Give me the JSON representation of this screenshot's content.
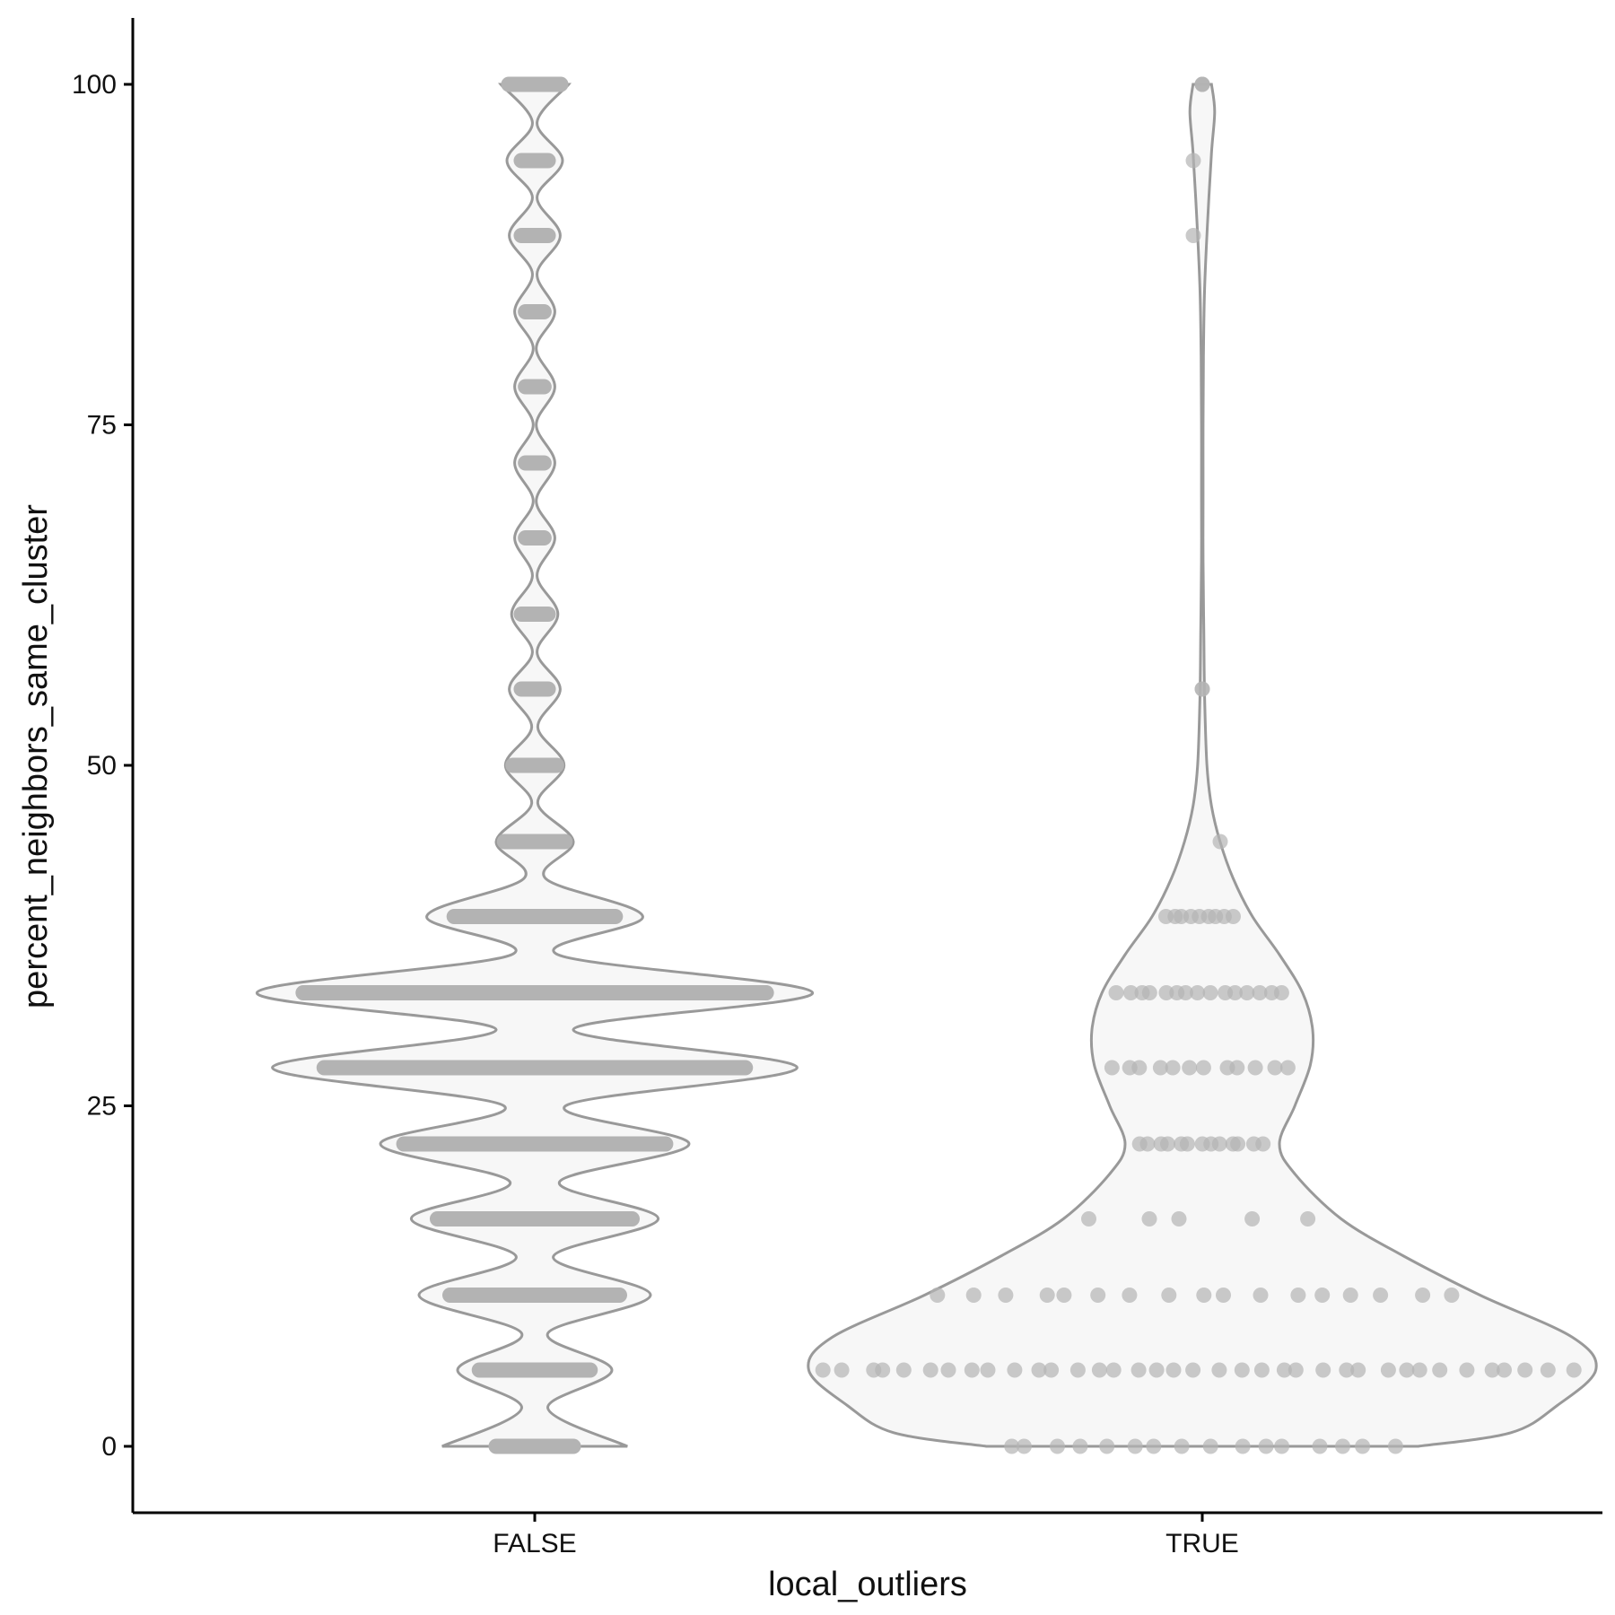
{
  "chart_data": {
    "type": "violin",
    "title": "",
    "xlabel": "local_outliers",
    "ylabel": "percent_neighbors_same_cluster",
    "categories": [
      "FALSE",
      "TRUE"
    ],
    "ylim": [
      -5,
      105
    ],
    "yticks": [
      0,
      25,
      50,
      75,
      100
    ],
    "grid": false,
    "colors": {
      "violin_fill": "#f7f7f7",
      "violin_stroke": "#999999",
      "point": "#b3b3b3",
      "axis": "#000000"
    },
    "groups": [
      {
        "name": "FALSE",
        "levels": [
          {
            "y": 0,
            "count": 10
          },
          {
            "y": 5.6,
            "count": 14
          },
          {
            "y": 11.1,
            "count": 21
          },
          {
            "y": 16.7,
            "count": 24
          },
          {
            "y": 22.2,
            "count": 32
          },
          {
            "y": 27.8,
            "count": 51
          },
          {
            "y": 33.3,
            "count": 56
          },
          {
            "y": 38.9,
            "count": 20
          },
          {
            "y": 44.4,
            "count": 8
          },
          {
            "y": 50,
            "count": 6
          },
          {
            "y": 55.6,
            "count": 4
          },
          {
            "y": 61.1,
            "count": 4
          },
          {
            "y": 66.7,
            "count": 3
          },
          {
            "y": 72.2,
            "count": 3
          },
          {
            "y": 77.8,
            "count": 3
          },
          {
            "y": 83.3,
            "count": 3
          },
          {
            "y": 88.9,
            "count": 4
          },
          {
            "y": 94.4,
            "count": 4
          },
          {
            "y": 100,
            "count": 7
          }
        ],
        "density_halfwidth": [
          [
            0,
            12
          ],
          [
            2.8,
            1.7
          ],
          [
            5.6,
            10
          ],
          [
            8.3,
            1.7
          ],
          [
            11.1,
            15
          ],
          [
            13.9,
            2.4
          ],
          [
            16.7,
            16
          ],
          [
            19.4,
            3.2
          ],
          [
            22.2,
            20
          ],
          [
            25,
            4
          ],
          [
            27.8,
            34
          ],
          [
            30.6,
            5
          ],
          [
            33.3,
            36
          ],
          [
            36.1,
            3
          ],
          [
            38.9,
            14
          ],
          [
            41.7,
            1.4
          ],
          [
            44.4,
            5
          ],
          [
            47.2,
            0.4
          ],
          [
            50,
            3.8
          ],
          [
            52.8,
            0.4
          ],
          [
            55.6,
            3.3
          ],
          [
            58.3,
            0.3
          ],
          [
            61.1,
            3
          ],
          [
            63.9,
            0.3
          ],
          [
            66.7,
            2.6
          ],
          [
            69.4,
            0.2
          ],
          [
            72.2,
            2.6
          ],
          [
            75,
            0.2
          ],
          [
            77.8,
            2.6
          ],
          [
            80.6,
            0.2
          ],
          [
            83.3,
            2.6
          ],
          [
            86.1,
            0.3
          ],
          [
            88.9,
            3.3
          ],
          [
            91.7,
            0.3
          ],
          [
            94.4,
            3.6
          ],
          [
            97.2,
            0.3
          ],
          [
            100,
            4.4
          ]
        ],
        "density_scale": 1
      },
      {
        "name": "TRUE",
        "points": [
          {
            "y": 0,
            "count": 16
          },
          {
            "y": 5.6,
            "count": 37
          },
          {
            "y": 11.1,
            "count": 17
          },
          {
            "y": 16.7,
            "count": 5
          },
          {
            "y": 22.2,
            "count": 13
          },
          {
            "y": 27.8,
            "count": 12
          },
          {
            "y": 33.3,
            "count": 15
          },
          {
            "y": 38.9,
            "count": 9
          },
          {
            "y": 44.4,
            "count": 1
          },
          {
            "y": 55.6,
            "count": 2
          },
          {
            "y": 88.9,
            "count": 1
          },
          {
            "y": 94.4,
            "count": 1
          },
          {
            "y": 100,
            "count": 3
          }
        ],
        "density_halfwidth": [
          [
            0,
            28
          ],
          [
            1,
            40
          ],
          [
            3,
            46
          ],
          [
            5.6,
            51
          ],
          [
            8,
            48
          ],
          [
            11.1,
            36
          ],
          [
            14,
            26
          ],
          [
            16.7,
            18
          ],
          [
            20,
            12
          ],
          [
            22.2,
            10
          ],
          [
            25,
            12
          ],
          [
            28,
            14
          ],
          [
            30.6,
            14.3
          ],
          [
            33.3,
            13
          ],
          [
            36.1,
            10
          ],
          [
            38.9,
            6.5
          ],
          [
            41.7,
            4
          ],
          [
            44.4,
            2.3
          ],
          [
            47,
            1.2
          ],
          [
            50,
            0.6
          ],
          [
            55,
            0.3
          ],
          [
            60,
            0.2
          ],
          [
            65,
            0.1
          ],
          [
            70,
            0.1
          ],
          [
            75,
            0.1
          ],
          [
            80,
            0.15
          ],
          [
            85,
            0.3
          ],
          [
            90,
            0.7
          ],
          [
            95,
            1.2
          ],
          [
            98,
            1.6
          ],
          [
            100,
            1.2
          ]
        ],
        "density_scale": 1
      }
    ]
  }
}
